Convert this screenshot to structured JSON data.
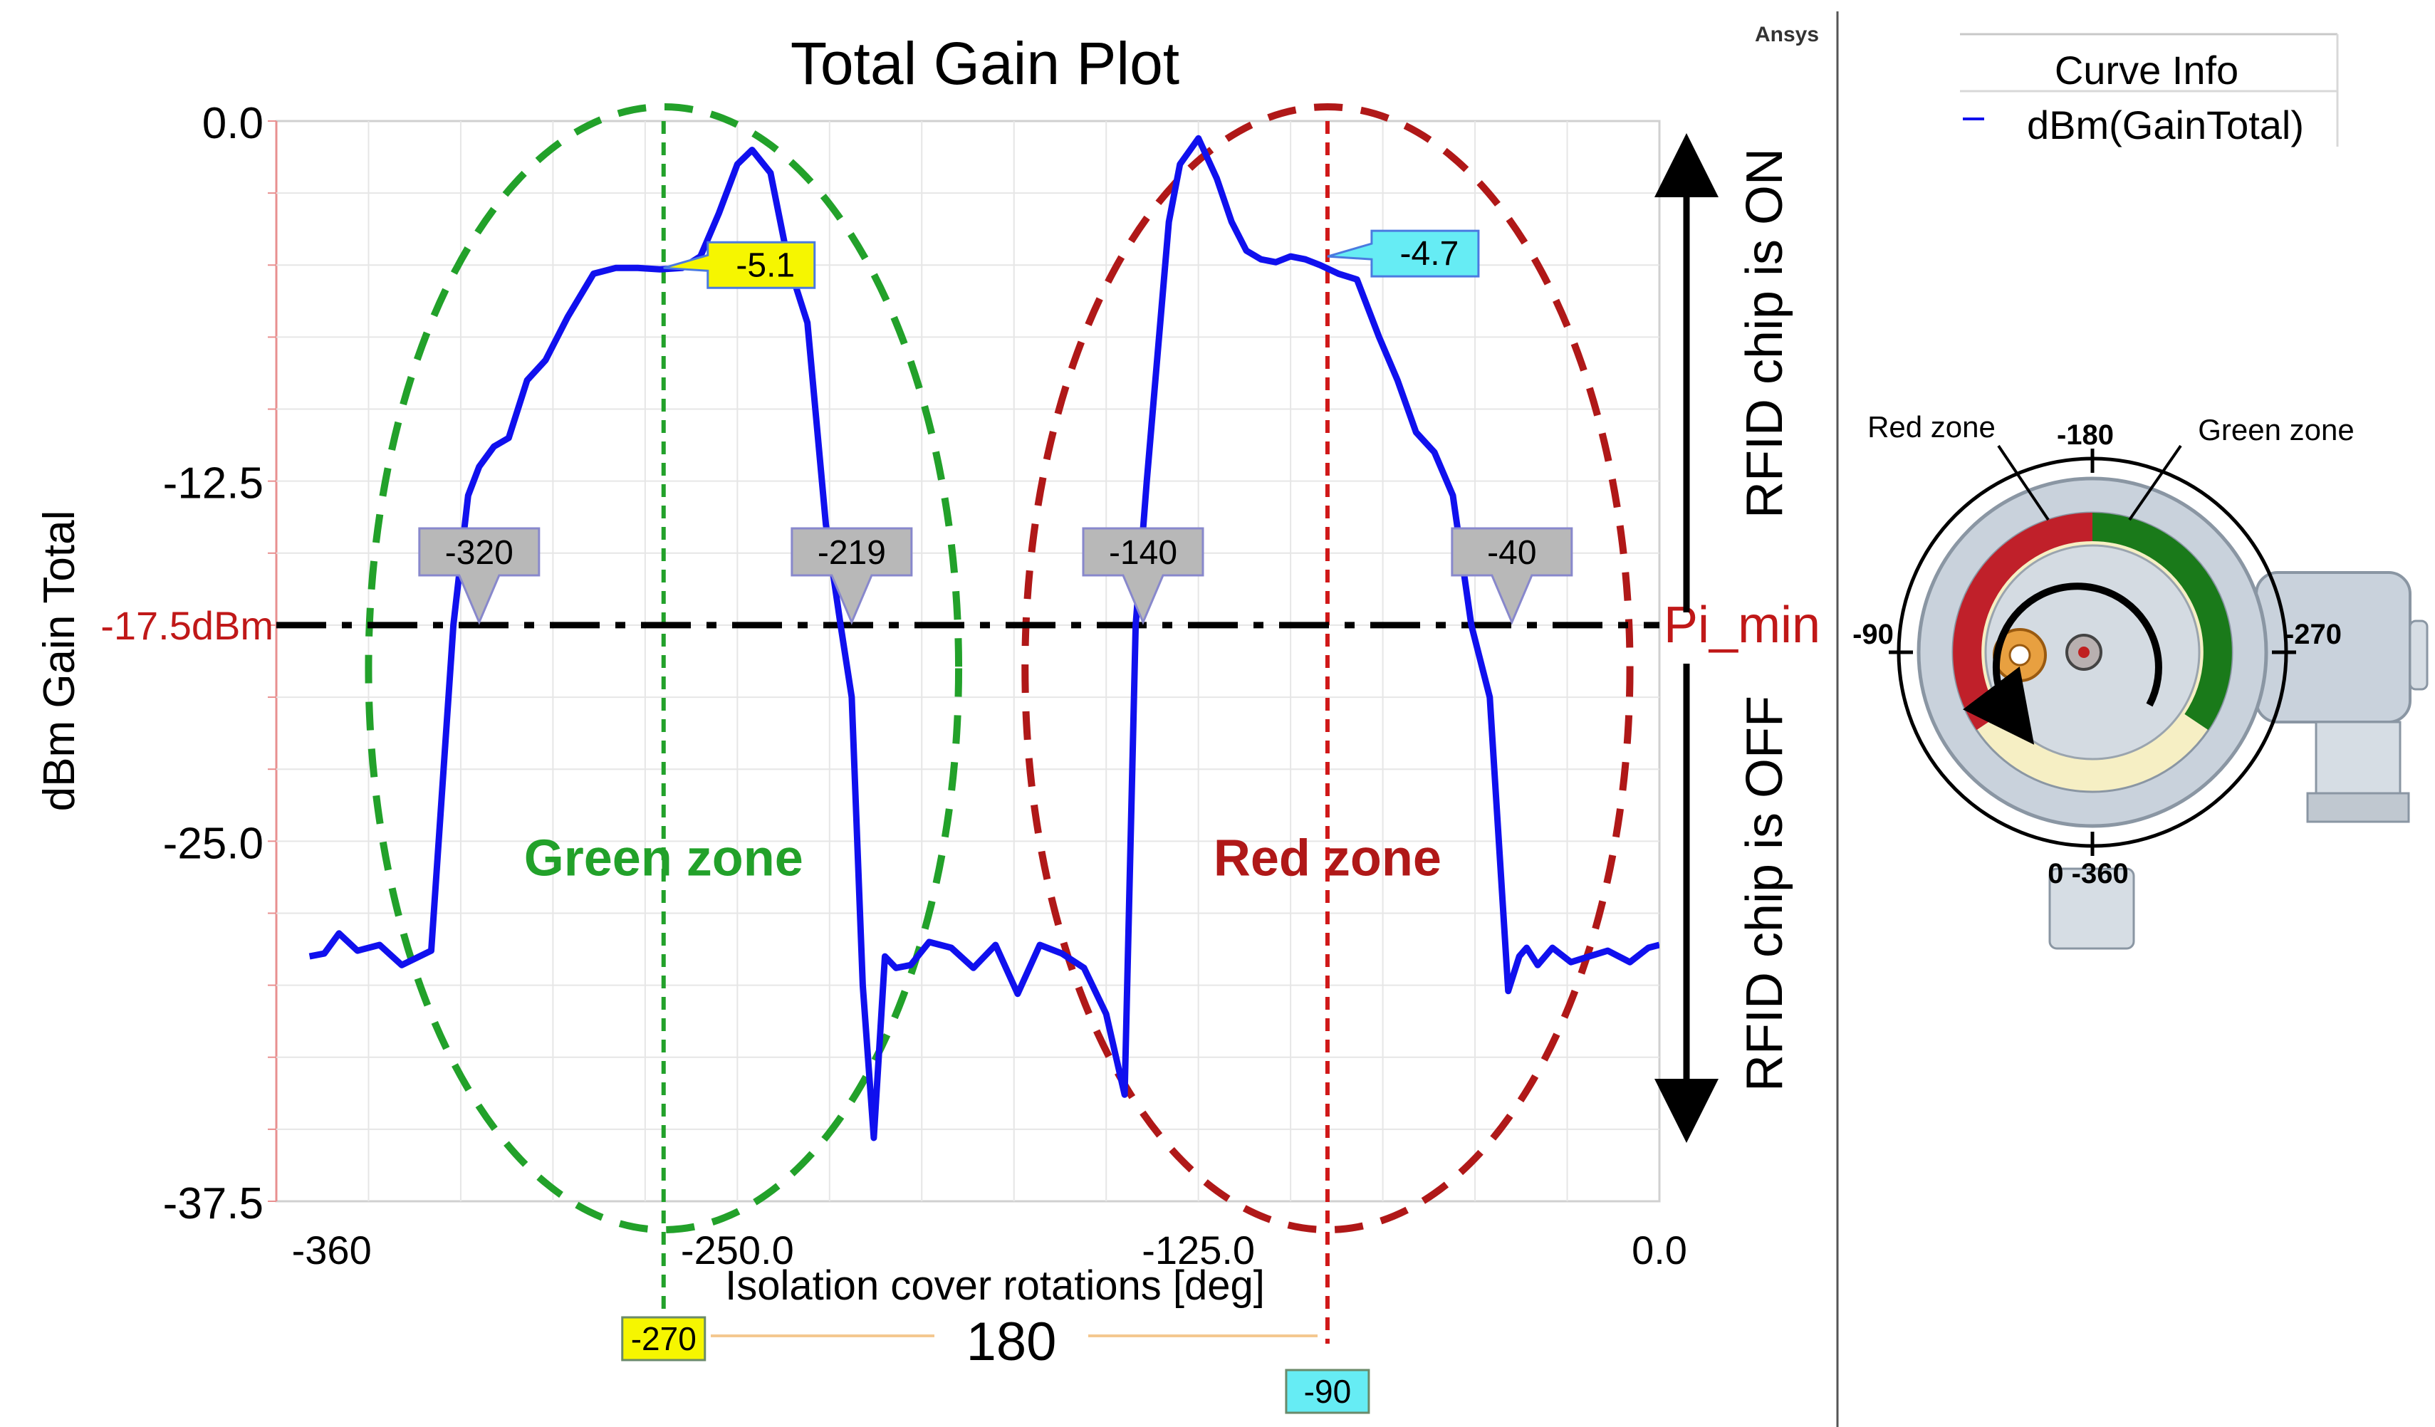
{
  "colors": {
    "curve": "#1010ee",
    "green": "#22a12a",
    "red": "#b01818",
    "threshold_label": "#c01818",
    "yellow": "#f6f600",
    "cyan": "#66ecf4",
    "gray_marker": "#b8b8b8",
    "orange_line": "#f4c890",
    "device_green": "#1a7a1a",
    "device_red": "#c0202a",
    "device_cream": "#f6efc4",
    "device_body": "#c9d2dc"
  },
  "chart_data": {
    "type": "line",
    "title": "Total Gain Plot",
    "xlabel": "Isolation cover rotations [deg]",
    "ylabel": "dBm Gain Total",
    "xlim": [
      -375,
      0
    ],
    "ylim": [
      -37.5,
      0
    ],
    "x_ticks": [
      {
        "value": -360,
        "label": "-360"
      },
      {
        "value": -250,
        "label": "-250.0"
      },
      {
        "value": -125,
        "label": "-125.0"
      },
      {
        "value": 0,
        "label": "0.0"
      }
    ],
    "y_ticks": [
      {
        "value": 0,
        "label": "0.0"
      },
      {
        "value": -12.5,
        "label": "-12.5"
      },
      {
        "value": -25,
        "label": "-25.0"
      },
      {
        "value": -37.5,
        "label": "-37.5"
      }
    ],
    "series": [
      {
        "name": "dBm(GainTotal)",
        "x": [
          -366,
          -362,
          -358,
          -353,
          -347,
          -341,
          -333,
          -327,
          -323,
          -320,
          -316,
          -312,
          -307,
          -302,
          -296,
          -289,
          -283,
          -277,
          -271,
          -265,
          -260,
          -255,
          -250,
          -246,
          -241,
          -236,
          -231,
          -226,
          -222,
          -219,
          -216,
          -213,
          -210,
          -207,
          -203,
          -198,
          -192,
          -186,
          -180,
          -174,
          -168,
          -162,
          -156,
          -150,
          -145,
          -142,
          -139,
          -136,
          -133,
          -130,
          -125,
          -120,
          -116,
          -112,
          -108,
          -104,
          -100,
          -96,
          -92,
          -87,
          -82,
          -76,
          -71,
          -66,
          -61,
          -56,
          -51,
          -46,
          -41,
          -38,
          -36,
          -33,
          -29,
          -24,
          -19,
          -14,
          -8,
          -3,
          0
        ],
        "values": [
          -29,
          -28.9,
          -28.2,
          -28.8,
          -28.6,
          -29.3,
          -28.8,
          -17.5,
          -13,
          -12.0,
          -11.3,
          -11.0,
          -9.0,
          -8.3,
          -6.8,
          -5.3,
          -5.1,
          -5.1,
          -5.15,
          -5.1,
          -4.7,
          -3.2,
          -1.5,
          -1.0,
          -1.8,
          -5.0,
          -7.0,
          -14.0,
          -17.5,
          -20.0,
          -30.0,
          -35.3,
          -29.0,
          -29.4,
          -29.3,
          -28.5,
          -28.7,
          -29.4,
          -28.6,
          -30.3,
          -28.6,
          -28.9,
          -29.4,
          -31.0,
          -33.8,
          -17.5,
          -12.5,
          -8.0,
          -3.5,
          -1.5,
          -0.6,
          -2.0,
          -3.5,
          -4.5,
          -4.8,
          -4.9,
          -4.7,
          -4.8,
          -5.0,
          -5.3,
          -5.5,
          -7.5,
          -9.0,
          -10.8,
          -11.5,
          -13.0,
          -17.5,
          -20.0,
          -30.2,
          -29.0,
          -28.7,
          -29.3,
          -28.7,
          -29.2,
          -29.0,
          -28.8,
          -29.2,
          -28.7,
          -28.6
        ]
      }
    ],
    "threshold": {
      "value": -17.5,
      "label": "-17.5dBm",
      "name": "Pi_min"
    },
    "crossing_markers": [
      {
        "x": -320,
        "label": "-320"
      },
      {
        "x": -219,
        "label": "-219"
      },
      {
        "x": -140,
        "label": "-140"
      },
      {
        "x": -40,
        "label": "-40"
      }
    ],
    "value_markers": [
      {
        "x": -270,
        "y": -5.1,
        "label": "-5.1",
        "style": "yellow"
      },
      {
        "x": -90,
        "y": -4.7,
        "label": "-4.7",
        "style": "cyan"
      }
    ],
    "vertical_lines": [
      {
        "x": -270,
        "label": "-270",
        "style": "green"
      },
      {
        "x": -90,
        "label": "-90",
        "style": "red"
      }
    ],
    "zones": [
      {
        "name": "Green zone",
        "x_center": -270,
        "half_width": 80,
        "style": "green"
      },
      {
        "name": "Red zone",
        "x_center": -90,
        "half_width": 82,
        "style": "red"
      }
    ],
    "span_label": "180",
    "annotations": {
      "on_label": "RFID chip is ON",
      "off_label": "RFID chip is OFF"
    },
    "legend": {
      "position": "top-right",
      "title": "Curve Info",
      "entries": [
        "dBm(GainTotal)"
      ]
    },
    "watermark": "Ansys",
    "grid": true
  },
  "inset": {
    "top_label": "-180",
    "left_label": "-90",
    "right_label": "-270",
    "bottom_label": "0 -360",
    "red_zone_label": "Red zone",
    "green_zone_label": "Green zone"
  }
}
